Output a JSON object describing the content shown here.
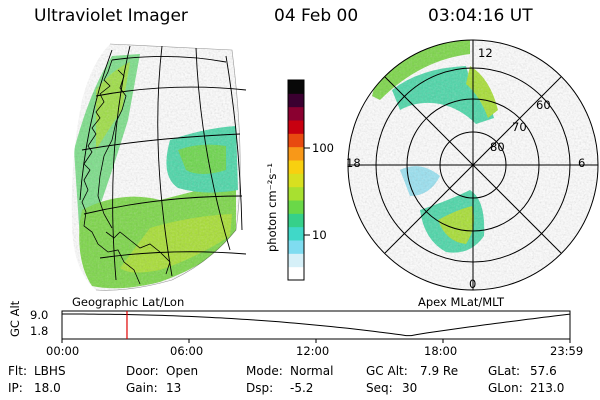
{
  "header": {
    "instrument": "Ultraviolet Imager",
    "date": "04 Feb 00",
    "time": "03:04:16 UT"
  },
  "left_panel": {
    "label": "Geographic Lat/Lon"
  },
  "right_panel": {
    "label": "Apex  MLat/MLT",
    "mlt_labels": [
      "12",
      "18",
      "6",
      "0"
    ],
    "mlat_labels": [
      "60",
      "70",
      "80"
    ]
  },
  "colorbar": {
    "unit_label": "photon cm⁻²s⁻¹",
    "ticks": [
      "100",
      "10"
    ],
    "scale": "log",
    "colors": [
      "#ffffff",
      "#d6f0f8",
      "#7fdcf0",
      "#40d8c8",
      "#36d08a",
      "#6ad848",
      "#a8e030",
      "#d8e020",
      "#f8d010",
      "#f89818",
      "#e84a10",
      "#c80010",
      "#8a0030",
      "#3a0030",
      "#080808"
    ]
  },
  "timeline": {
    "axis_label": "GC Alt",
    "y_ticks": [
      "9.0",
      "1.8"
    ],
    "x_ticks": [
      "00:00",
      "06:00",
      "12:00",
      "18:00",
      "23:59"
    ],
    "current_marker_hours": 3.07,
    "marker_color": "#e00000"
  },
  "info": {
    "filter_label": "Flt:",
    "filter_value": "LBHS",
    "door_label": "Door:",
    "door_value": "Open",
    "mode_label": "Mode:",
    "mode_value": "Normal",
    "gcalt_label": "GC Alt:",
    "gcalt_value": "7.9 Re",
    "glat_label": "GLat:",
    "glat_value": "57.6",
    "ip_label": "IP:",
    "ip_value": "18.0",
    "gain_label": "Gain:",
    "gain_value": "13",
    "dsp_label": "Dsp:",
    "dsp_value": "-5.2",
    "seq_label": "Seq:",
    "seq_value": "30",
    "glon_label": "GLon:",
    "glon_value": "213.0"
  }
}
